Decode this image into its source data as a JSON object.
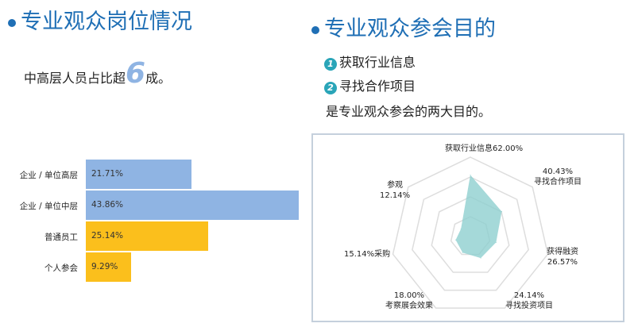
{
  "left": {
    "title": "专业观众岗位情况",
    "summary_prefix": "中高层人员占比超",
    "summary_number": "6",
    "summary_suffix": "成。"
  },
  "right": {
    "title": "专业观众参会目的",
    "items": [
      {
        "num": "1",
        "text": "获取行业信息"
      },
      {
        "num": "2",
        "text": "寻找合作项目"
      }
    ],
    "summary": "是专业观众参会的两大目的。"
  },
  "colors": {
    "title": "#1f6fb5",
    "blue_bar": "#8fb4e3",
    "yellow_bar": "#fbbf1c",
    "radar_fill": "#8fd0d0"
  },
  "chart_data": [
    {
      "type": "bar",
      "orientation": "horizontal",
      "categories": [
        "企业 / 单位高层",
        "企业 / 单位中层",
        "普通员工",
        "个人参会"
      ],
      "values": [
        21.71,
        43.86,
        25.14,
        9.29
      ],
      "labels": [
        "21.71%",
        "43.86%",
        "25.14%",
        "9.29%"
      ],
      "bar_colors": [
        "#8fb4e3",
        "#8fb4e3",
        "#fbbf1c",
        "#fbbf1c"
      ]
    },
    {
      "type": "radar",
      "max": 80,
      "rings": 4,
      "grid": true,
      "axes": [
        {
          "name": "获取行业信息",
          "value": 62.0,
          "label": "62.00%"
        },
        {
          "name": "寻找合作项目",
          "value": 40.43,
          "label": "40.43%"
        },
        {
          "name": "获得融资",
          "value": 26.57,
          "label": "26.57%"
        },
        {
          "name": "寻找投资项目",
          "value": 24.14,
          "label": "24.14%"
        },
        {
          "name": "考察展会效果",
          "value": 18.0,
          "label": "18.00%"
        },
        {
          "name": "采购",
          "value": 15.14,
          "label": "15.14%"
        },
        {
          "name": "参观",
          "value": 12.14,
          "label": "12.14%"
        }
      ]
    }
  ]
}
